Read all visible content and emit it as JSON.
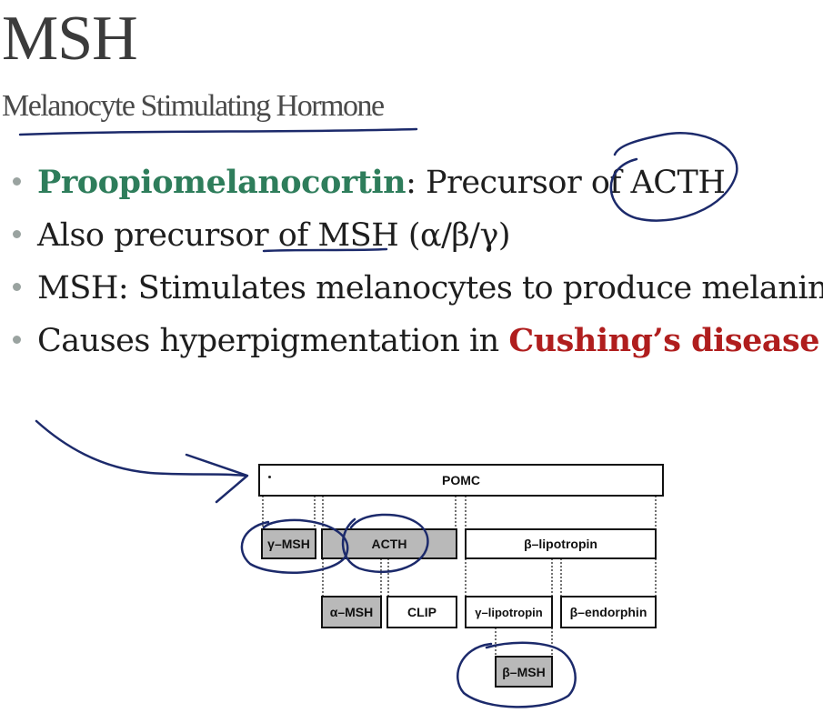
{
  "slide": {
    "title": "MSH",
    "subtitle": "Melanocyte Stimulating Hormone"
  },
  "bullets": [
    {
      "highlight": "Proopiomelanocortin",
      "text": ": Precursor of ACTH"
    },
    {
      "text": "Also precursor of MSH (α/β/γ)"
    },
    {
      "text": "MSH: Stimulates melanocytes to produce melanin"
    },
    {
      "lead": "Causes hyperpigmentation in ",
      "emphasis": "Cushing’s disease"
    }
  ],
  "diagram": {
    "pomc": "POMC",
    "gamma_msh": "γ–MSH",
    "acth": "ACTH",
    "beta_lipotropin": "β–lipotropin",
    "alpha_msh": "α–MSH",
    "clip": "CLIP",
    "gamma_lipotropin": "γ–lipotropin",
    "beta_endorphin": "β–endorphin",
    "beta_msh": "β–MSH"
  },
  "colors": {
    "highlight_green": "#2e7d5b",
    "emphasis_red": "#b01e1e",
    "annotation_ink": "#1c2a6b",
    "gray_box": "#b9b9b9"
  }
}
